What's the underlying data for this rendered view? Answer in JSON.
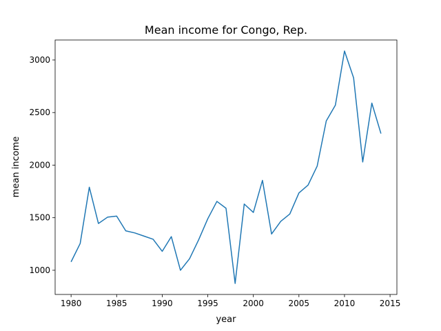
{
  "chart_data": {
    "type": "line",
    "title": "Mean income for Congo, Rep.",
    "xlabel": "year",
    "ylabel": "mean income",
    "xlim": [
      1978.25,
      2015.75
    ],
    "ylim": [
      770,
      3190
    ],
    "xticks": [
      1980,
      1985,
      1990,
      1995,
      2000,
      2005,
      2010,
      2015
    ],
    "yticks": [
      1000,
      1500,
      2000,
      2500,
      3000
    ],
    "grid": false,
    "legend": "none",
    "series": [
      {
        "color": "#1f77b4",
        "x": [
          1980,
          1981,
          1982,
          1983,
          1984,
          1985,
          1986,
          1987,
          1988,
          1989,
          1990,
          1991,
          1992,
          1993,
          1994,
          1995,
          1996,
          1997,
          1998,
          1999,
          2000,
          2001,
          2002,
          2003,
          2004,
          2005,
          2006,
          2007,
          2008,
          2009,
          2010,
          2011,
          2012,
          2013,
          2014
        ],
        "y": [
          1080,
          1255,
          1790,
          1445,
          1505,
          1515,
          1375,
          1355,
          1325,
          1295,
          1180,
          1320,
          1000,
          1110,
          1290,
          1490,
          1655,
          1590,
          875,
          1630,
          1550,
          1855,
          1345,
          1465,
          1535,
          1735,
          1810,
          1990,
          2420,
          2570,
          3085,
          2830,
          2030,
          2590,
          2300
        ]
      }
    ]
  }
}
